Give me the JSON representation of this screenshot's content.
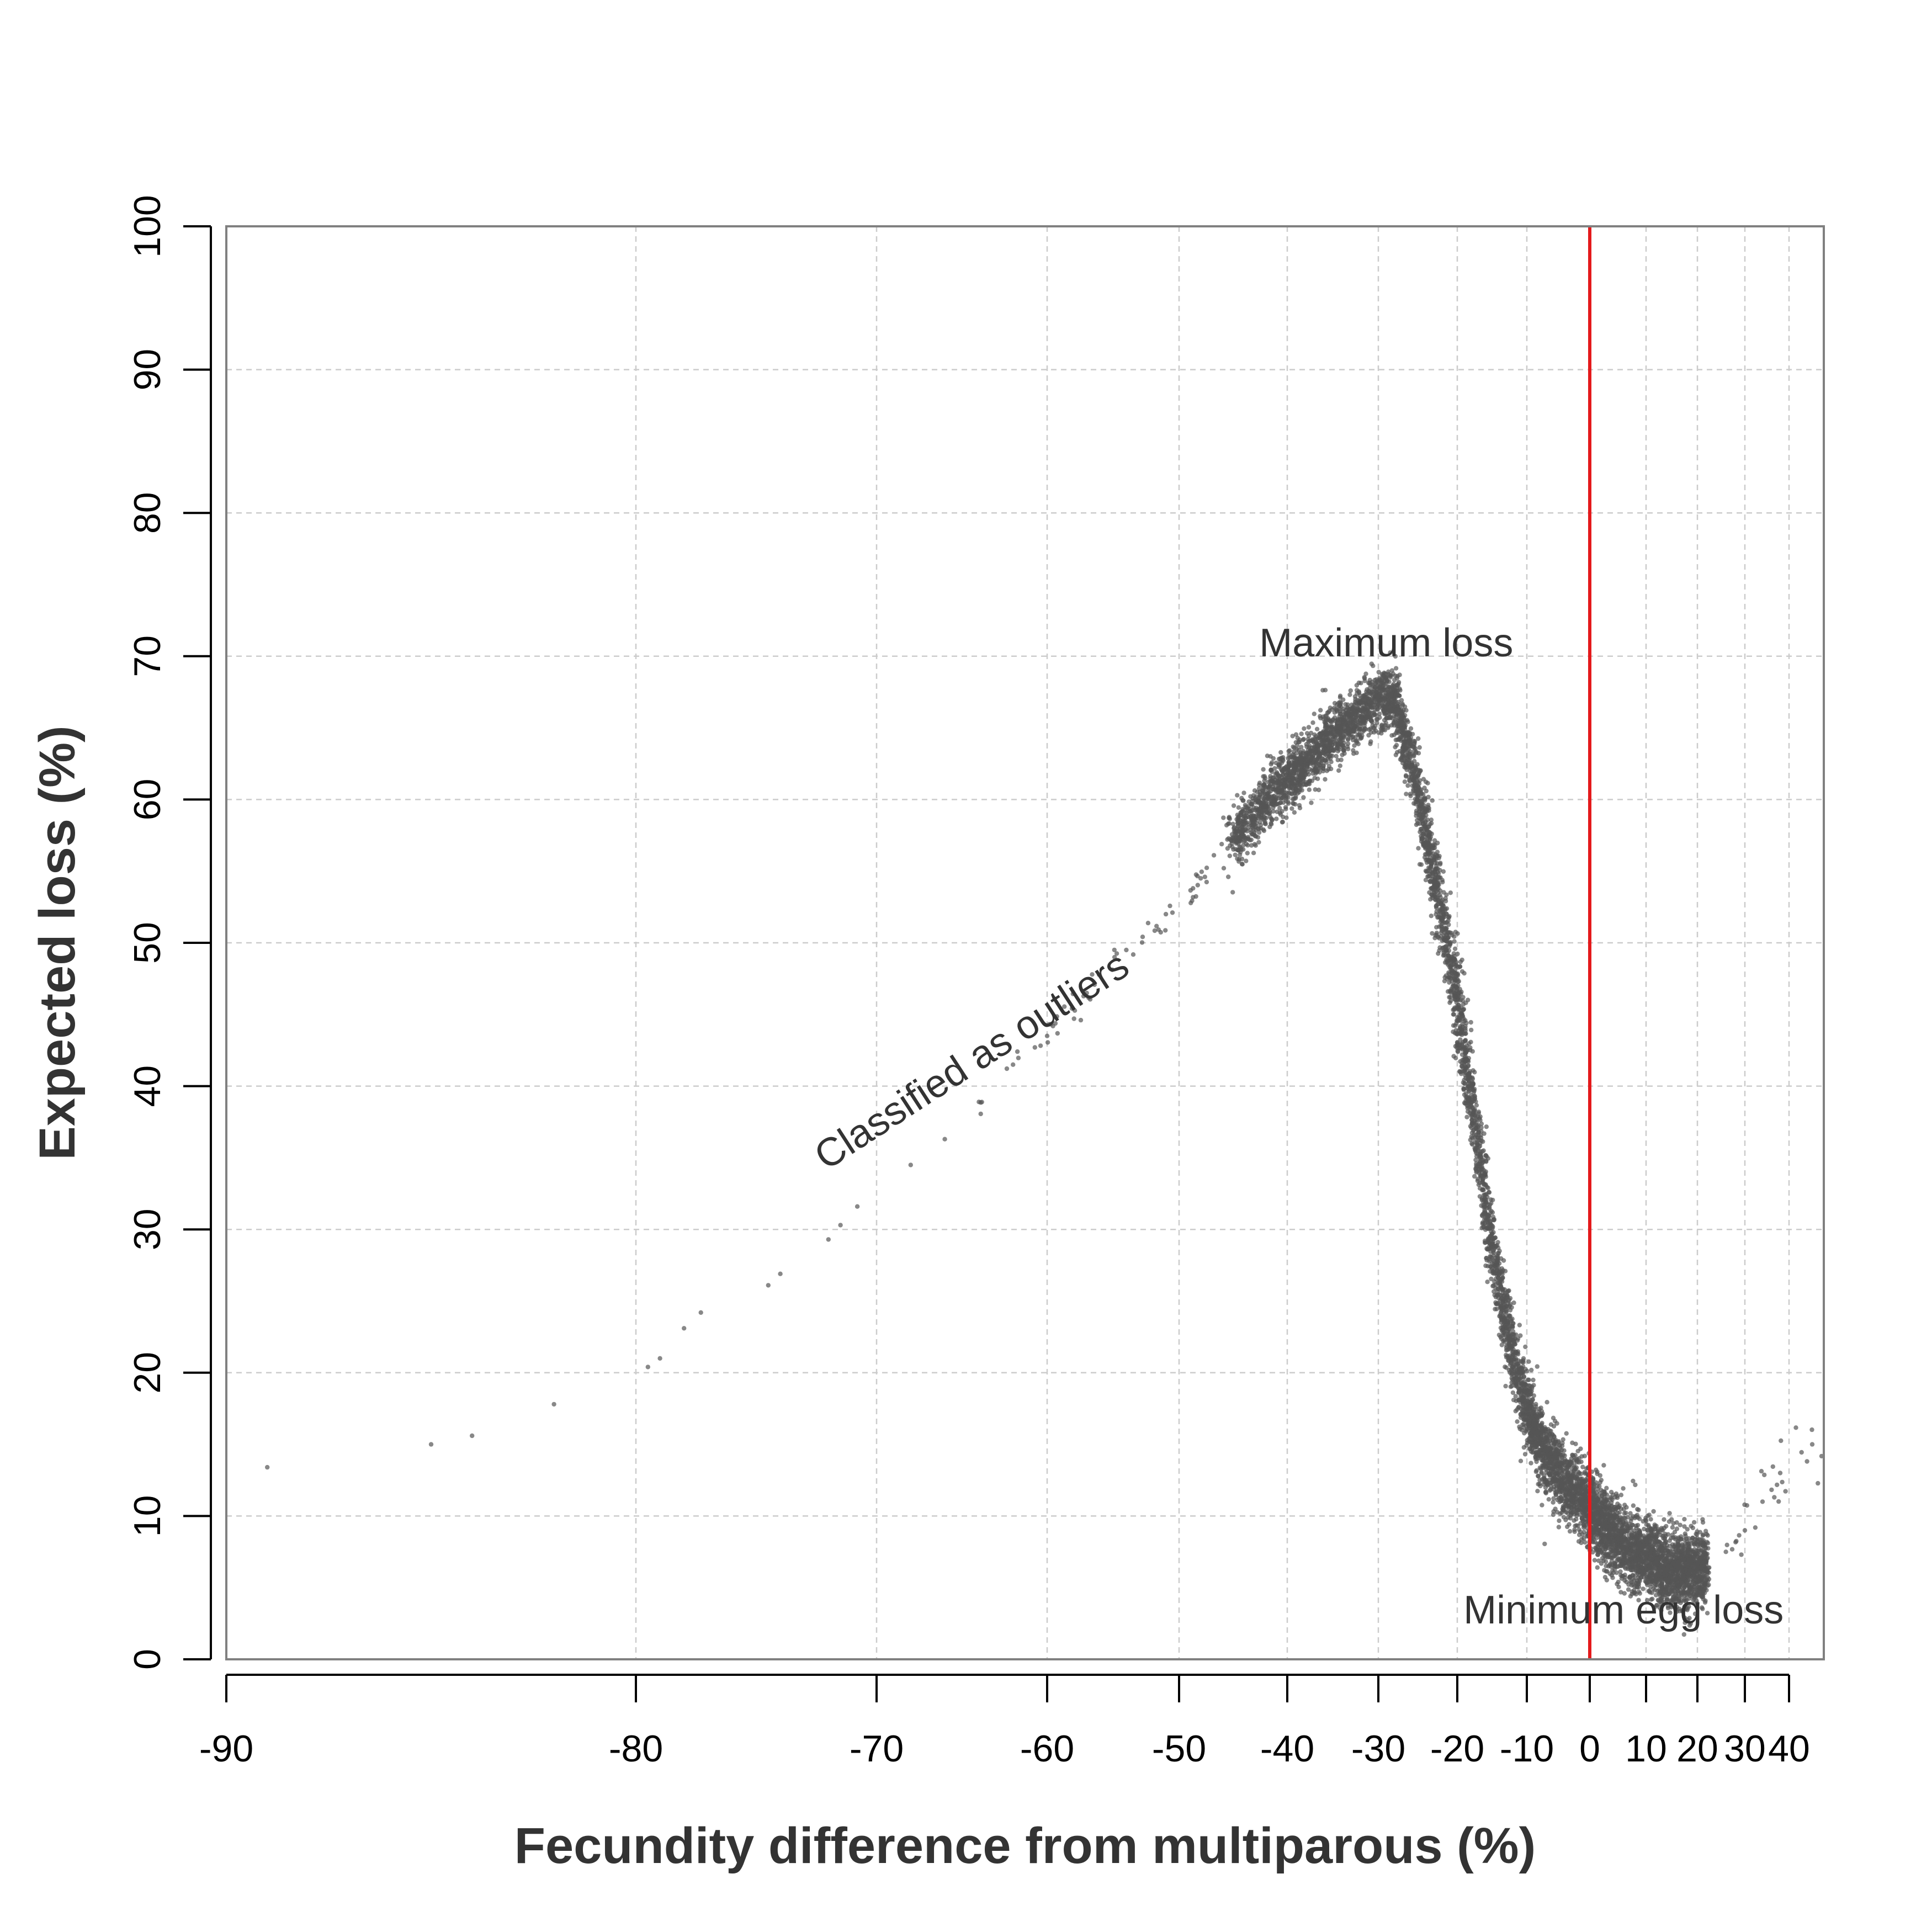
{
  "chart_data": {
    "type": "scatter",
    "title": "",
    "xlabel": "Fecundity difference from multiparous (%)",
    "ylabel": "Expected loss (%)",
    "x_scale": "transformed (non-linear): wide spacing at negative values, compressed at positive values",
    "xlim": [
      -90,
      43
    ],
    "ylim": [
      0,
      100
    ],
    "x_ticks": [
      -90,
      -80,
      -70,
      -60,
      -50,
      -40,
      -30,
      -20,
      -10,
      0,
      10,
      20,
      30,
      40
    ],
    "x_tick_labels": [
      "-90",
      "-80",
      "-70",
      "-60",
      "-50",
      "-40",
      "-30",
      "-20",
      "-10",
      "0",
      "10",
      "20",
      "30",
      "40"
    ],
    "y_ticks": [
      0,
      10,
      20,
      30,
      40,
      50,
      60,
      70,
      80,
      90,
      100
    ],
    "y_tick_labels": [
      "0",
      "10",
      "20",
      "30",
      "40",
      "50",
      "60",
      "70",
      "80",
      "90",
      "100"
    ],
    "grid": true,
    "vline": {
      "x": 0,
      "color": "#e41a1c"
    },
    "point_color": "#555555",
    "annotations": [
      {
        "text": "Maximum loss",
        "x": -29,
        "y": 70
      },
      {
        "text": "Classified as outliers",
        "x": -64,
        "y": 41,
        "rotation": -33
      },
      {
        "text": "Minimum egg loss",
        "x": 6,
        "y": 2.5
      }
    ],
    "trend": {
      "description": "dense point cloud approximating the curve below",
      "points": [
        [
          -89,
          13.4
        ],
        [
          -85,
          15
        ],
        [
          -84,
          15.6
        ],
        [
          -82,
          17.8
        ],
        [
          -79.5,
          20.4
        ],
        [
          -79,
          21
        ],
        [
          -78,
          23.1
        ],
        [
          -77.3,
          24.2
        ],
        [
          -74.5,
          26.1
        ],
        [
          -74,
          26.9
        ],
        [
          -72,
          29.3
        ],
        [
          -71.5,
          30.3
        ],
        [
          -70.8,
          31.6
        ],
        [
          -68,
          34.5
        ],
        [
          -66,
          36.3
        ],
        [
          -64,
          38.9
        ],
        [
          -62,
          41.5
        ],
        [
          -60,
          43.5
        ],
        [
          -57,
          46.5
        ],
        [
          -54,
          49.5
        ],
        [
          -51,
          52
        ],
        [
          -48,
          54.5
        ],
        [
          -45,
          57
        ],
        [
          -42,
          60
        ],
        [
          -38,
          62.5
        ],
        [
          -35,
          64.5
        ],
        [
          -32,
          66
        ],
        [
          -30,
          67
        ],
        [
          -28,
          67
        ],
        [
          -26,
          63
        ],
        [
          -24,
          58
        ],
        [
          -22,
          52
        ],
        [
          -20,
          46
        ],
        [
          -18,
          39
        ],
        [
          -16,
          32
        ],
        [
          -14,
          26
        ],
        [
          -12,
          21
        ],
        [
          -10,
          17.5
        ],
        [
          -8,
          15
        ],
        [
          -5,
          13
        ],
        [
          -2,
          11.5
        ],
        [
          0,
          10.5
        ],
        [
          3,
          9
        ],
        [
          6,
          8
        ],
        [
          10,
          7
        ],
        [
          14,
          6.3
        ],
        [
          18,
          6.1
        ],
        [
          22,
          6.5
        ],
        [
          26,
          7.5
        ],
        [
          30,
          9
        ],
        [
          34,
          11
        ],
        [
          38,
          13
        ],
        [
          42,
          15
        ]
      ]
    },
    "scatter_bands": [
      {
        "from_x": -45,
        "to_x": -26,
        "spread_y": 1.0
      },
      {
        "from_x": -26,
        "to_x": -10,
        "spread_y": 1.1
      },
      {
        "from_x": -10,
        "to_x": 22,
        "spread_y": 1.3
      }
    ]
  }
}
